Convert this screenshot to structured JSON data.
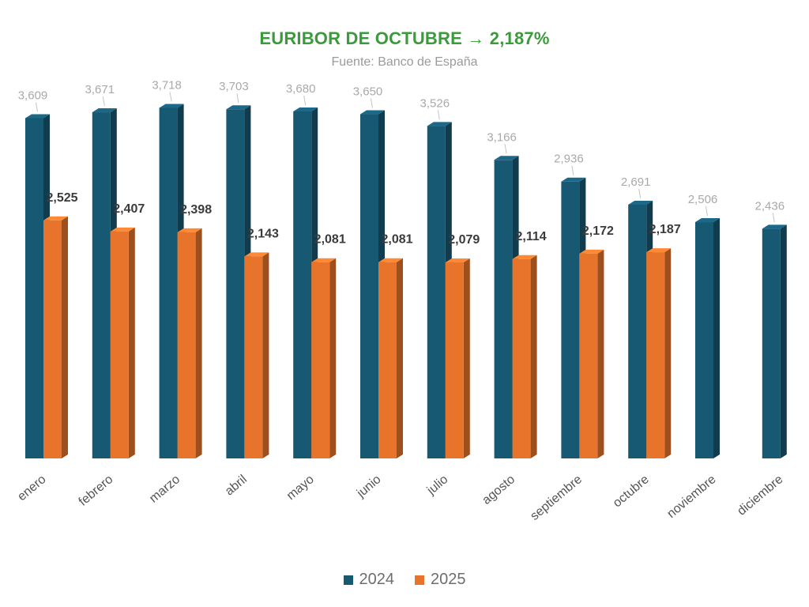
{
  "chart_data": {
    "type": "bar",
    "title": "EURIBOR DE OCTUBRE → 2,187%",
    "subtitle": "Fuente: Banco de España",
    "categories": [
      "enero",
      "febrero",
      "marzo",
      "abril",
      "mayo",
      "junio",
      "julio",
      "agosto",
      "septiembre",
      "octubre",
      "noviembre",
      "diciembre"
    ],
    "series": [
      {
        "name": "2024",
        "color": "#175873",
        "values": [
          3.609,
          3.671,
          3.718,
          3.703,
          3.68,
          3.65,
          3.526,
          3.166,
          2.936,
          2.691,
          2.506,
          2.436
        ],
        "labels": [
          "3,609",
          "3,671",
          "3,718",
          "3,703",
          "3,680",
          "3,650",
          "3,526",
          "3,166",
          "2,936",
          "2,691",
          "2,506",
          "2,436"
        ]
      },
      {
        "name": "2025",
        "color": "#e8742c",
        "values": [
          2.525,
          2.407,
          2.398,
          2.143,
          2.081,
          2.081,
          2.079,
          2.114,
          2.172,
          2.187,
          null,
          null
        ],
        "labels": [
          "2,525",
          "2,407",
          "2,398",
          "2,143",
          "2,081",
          "2,081",
          "2,079",
          "2,114",
          "2,172",
          "2,187",
          "",
          ""
        ]
      }
    ],
    "ylim": [
      0,
      4
    ],
    "grid": false,
    "legend_position": "bottom",
    "style": "3d-columns"
  }
}
